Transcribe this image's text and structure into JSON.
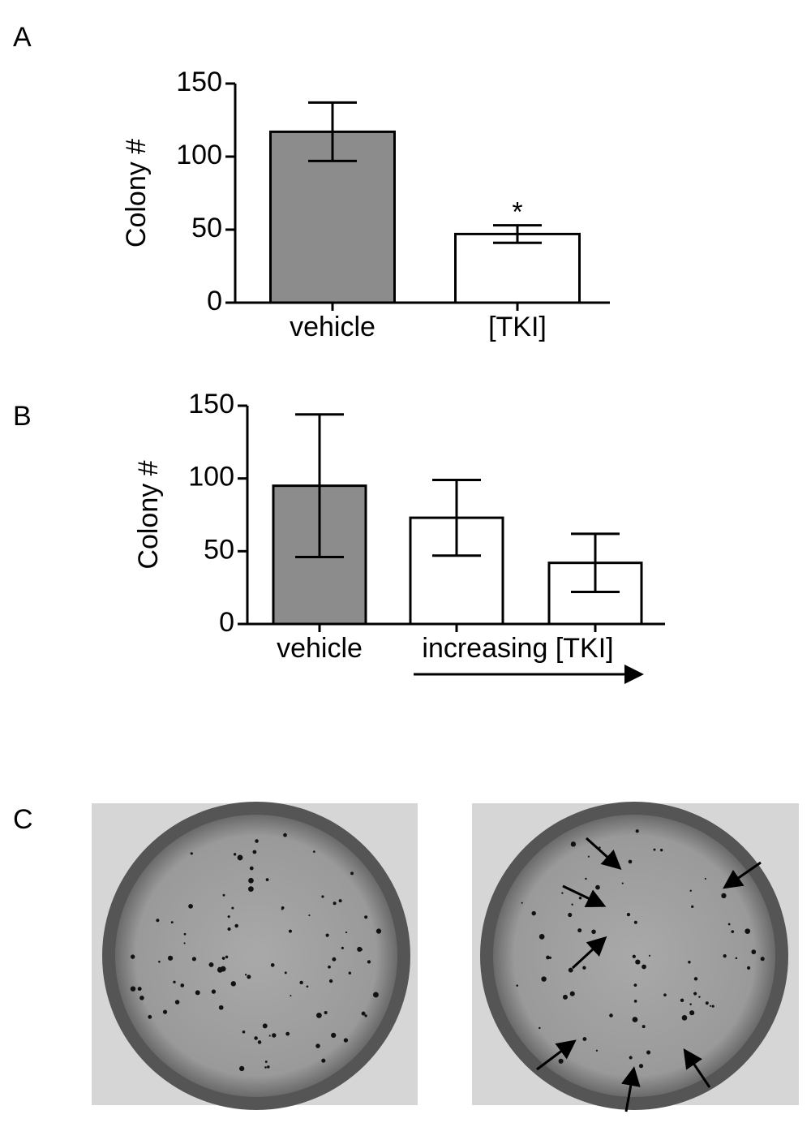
{
  "chart_data": [
    {
      "type": "bar",
      "panel_label": "A",
      "ylabel": "Colony #",
      "categories": [
        "vehicle",
        "[TKI]"
      ],
      "values": [
        117,
        47
      ],
      "errors": [
        20,
        6
      ],
      "colors": [
        "#8c8c8c",
        "#ffffff"
      ],
      "annotation": "*",
      "ylim": [
        0,
        150
      ],
      "yticks": [
        0,
        50,
        100,
        150
      ]
    },
    {
      "type": "bar",
      "panel_label": "B",
      "ylabel": "Colony #",
      "categories": [
        "vehicle",
        null,
        null
      ],
      "group_label": "increasing [TKI]",
      "values": [
        95,
        73,
        42
      ],
      "errors": [
        49,
        26,
        20
      ],
      "colors": [
        "#8c8c8c",
        "#ffffff",
        "#ffffff"
      ],
      "ylim": [
        0,
        150
      ],
      "yticks": [
        0,
        50,
        100,
        150
      ]
    }
  ],
  "panel_c": {
    "label": "C"
  }
}
